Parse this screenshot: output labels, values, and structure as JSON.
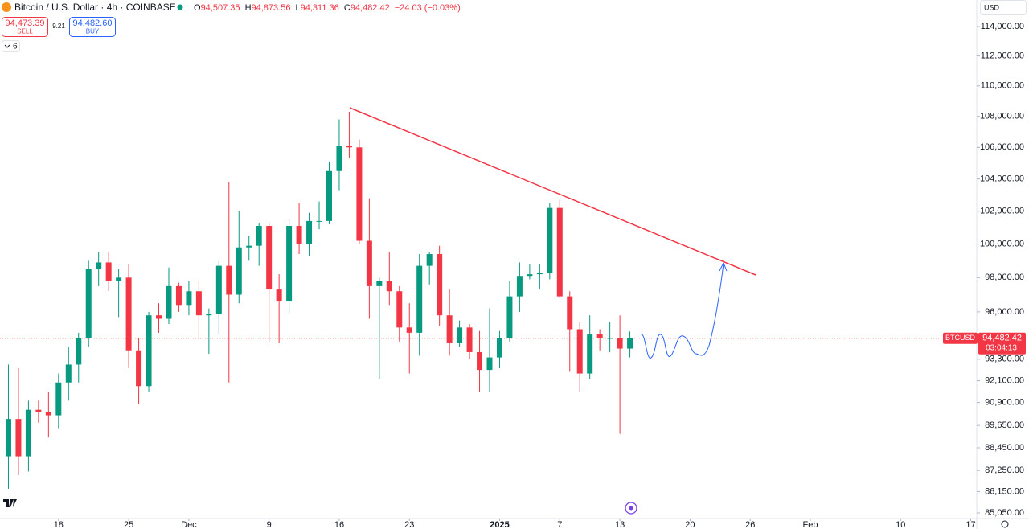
{
  "header": {
    "symbol": "Bitcoin / U.S. Dollar · 4h · COINBASE",
    "ohlc": [
      {
        "key": "O",
        "value": "94,507.35"
      },
      {
        "key": "H",
        "value": "94,873.56"
      },
      {
        "key": "L",
        "value": "94,311.36"
      },
      {
        "key": "C",
        "value": "94,482.42"
      }
    ],
    "change": "−24.03 (−0.03%)",
    "sell": {
      "price": "94,473.39",
      "label": "SELL"
    },
    "spread": "9.21",
    "buy": {
      "price": "94,482.60",
      "label": "BUY"
    },
    "indicators": "6",
    "currency": "USD"
  },
  "chart_data": {
    "type": "candlestick",
    "log_scale": true,
    "up_color": "#089981",
    "down_color": "#f23645",
    "x": [
      "2024-11-13",
      "2024-11-14",
      "2024-11-15",
      "2024-11-16",
      "2024-11-17",
      "2024-11-18",
      "2024-11-19",
      "2024-11-20",
      "2024-11-21",
      "2024-11-22",
      "2024-11-23",
      "2024-11-24",
      "2024-11-25",
      "2024-11-26",
      "2024-11-27",
      "2024-11-28",
      "2024-11-29",
      "2024-11-30",
      "2024-12-01",
      "2024-12-02",
      "2024-12-03",
      "2024-12-04",
      "2024-12-05",
      "2024-12-06",
      "2024-12-07",
      "2024-12-08",
      "2024-12-09",
      "2024-12-10",
      "2024-12-11",
      "2024-12-12",
      "2024-12-13",
      "2024-12-14",
      "2024-12-15",
      "2024-12-16",
      "2024-12-17",
      "2024-12-18",
      "2024-12-19",
      "2024-12-20",
      "2024-12-21",
      "2024-12-22",
      "2024-12-23",
      "2024-12-24",
      "2024-12-25",
      "2024-12-26",
      "2024-12-27",
      "2024-12-28",
      "2024-12-29",
      "2024-12-30",
      "2024-12-31",
      "2025-01-01",
      "2025-01-02",
      "2025-01-03",
      "2025-01-04",
      "2025-01-05",
      "2025-01-06",
      "2025-01-07",
      "2025-01-08",
      "2025-01-09",
      "2025-01-10",
      "2025-01-11",
      "2025-01-12",
      "2025-01-13",
      "2025-01-14"
    ],
    "open": [
      88000,
      90000,
      88000,
      90500,
      90400,
      90200,
      92000,
      93000,
      94500,
      98500,
      98900,
      97800,
      98000,
      93800,
      91800,
      95800,
      95600,
      97500,
      96400,
      97200,
      95800,
      95900,
      98700,
      97000,
      99800,
      99900,
      101100,
      97300,
      96600,
      101100,
      100000,
      101400,
      101400,
      104500,
      106100,
      106000,
      100200,
      97500,
      97800,
      97200,
      95100,
      94800,
      98700,
      99400,
      95800,
      94200,
      95100,
      93700,
      92700,
      93400,
      94500,
      96900,
      98100,
      98200,
      98300,
      102200,
      96900,
      95000,
      92500,
      94700,
      94500,
      94500,
      93900
    ],
    "high": [
      93000,
      92800,
      91000,
      91000,
      91500,
      92500,
      94000,
      94800,
      99000,
      99500,
      99500,
      98500,
      98800,
      94500,
      96000,
      96500,
      98600,
      97700,
      97800,
      97800,
      96200,
      99000,
      103800,
      102000,
      100500,
      101300,
      101300,
      98200,
      101500,
      102500,
      101900,
      102600,
      105100,
      107800,
      108300,
      106500,
      102800,
      98000,
      99500,
      97500,
      96500,
      99400,
      99500,
      99900,
      97300,
      95500,
      95300,
      94900,
      96200,
      94900,
      97800,
      98900,
      98800,
      98800,
      102500,
      102700,
      97200,
      95400,
      95800,
      95000,
      95400,
      95800,
      94870
    ],
    "low": [
      86300,
      87000,
      87200,
      89800,
      89000,
      89500,
      91000,
      92000,
      94000,
      97500,
      97200,
      95700,
      92800,
      90800,
      91500,
      94800,
      95300,
      96000,
      95800,
      94500,
      93600,
      94700,
      92000,
      96500,
      99000,
      98700,
      94300,
      94200,
      95900,
      99400,
      99300,
      100900,
      101200,
      103300,
      105300,
      100000,
      95600,
      92200,
      96400,
      94300,
      92500,
      93500,
      97600,
      95200,
      93500,
      94000,
      93300,
      91500,
      91500,
      92800,
      94300,
      96000,
      97900,
      97300,
      97900,
      96800,
      92600,
      91500,
      92200,
      93800,
      93700,
      89200,
      93400
    ],
    "close": [
      90000,
      88000,
      90500,
      90400,
      90200,
      92000,
      93000,
      94500,
      98500,
      98900,
      97800,
      98000,
      93800,
      91800,
      95800,
      95600,
      97500,
      96400,
      97200,
      95800,
      95900,
      98700,
      97000,
      99800,
      99900,
      101100,
      97300,
      96600,
      101100,
      100000,
      101400,
      101400,
      104500,
      106100,
      106000,
      100200,
      97500,
      97800,
      97200,
      95100,
      94800,
      98700,
      99400,
      95800,
      94200,
      95100,
      93700,
      92700,
      93400,
      94500,
      96900,
      98100,
      98200,
      98300,
      102200,
      96900,
      95000,
      92500,
      94700,
      94500,
      94500,
      93900,
      94482.42
    ],
    "xlim": [
      "2024-11-12",
      "2025-02-18"
    ],
    "xticks": [
      {
        "value": "2024-11-18",
        "label": "18"
      },
      {
        "value": "2024-11-25",
        "label": "25"
      },
      {
        "value": "2024-12-01",
        "label": "Dec"
      },
      {
        "value": "2024-12-09",
        "label": "9"
      },
      {
        "value": "2024-12-16",
        "label": "16"
      },
      {
        "value": "2024-12-23",
        "label": "23"
      },
      {
        "value": "2025-01-01",
        "label": "2025"
      },
      {
        "value": "2025-01-07",
        "label": "7"
      },
      {
        "value": "2025-01-13",
        "label": "13"
      },
      {
        "value": "2025-01-20",
        "label": "20"
      },
      {
        "value": "2025-01-26",
        "label": "26"
      },
      {
        "value": "2025-02-01",
        "label": "Feb"
      },
      {
        "value": "2025-02-10",
        "label": "10"
      },
      {
        "value": "2025-02-17",
        "label": "17"
      }
    ],
    "ylim": [
      84760,
      115840
    ],
    "yticks": [
      {
        "value": 114000,
        "label": "114,000.00"
      },
      {
        "value": 112000,
        "label": "112,000.00"
      },
      {
        "value": 110000,
        "label": "110,000.00"
      },
      {
        "value": 108000,
        "label": "108,000.00"
      },
      {
        "value": 106000,
        "label": "106,000.00"
      },
      {
        "value": 104000,
        "label": "104,000.00"
      },
      {
        "value": 102000,
        "label": "102,000.00"
      },
      {
        "value": 100000,
        "label": "100,000.00"
      },
      {
        "value": 98000,
        "label": "98,000.00"
      },
      {
        "value": 96000,
        "label": "96,000.00"
      },
      {
        "value": 93300,
        "label": "93,300.00"
      },
      {
        "value": 92100,
        "label": "92,100.00"
      },
      {
        "value": 90900,
        "label": "90,900.00"
      },
      {
        "value": 89650,
        "label": "89,650.00"
      },
      {
        "value": 88450,
        "label": "88,450.00"
      },
      {
        "value": 87250,
        "label": "87,250.00"
      },
      {
        "value": 86150,
        "label": "86,150.00"
      },
      {
        "value": 85050,
        "label": "85,050.00"
      }
    ],
    "last_price": {
      "value": 94482.42,
      "label": "94,482.42"
    },
    "symbol_tag": "BTCUSD",
    "countdown": "03:04:13"
  }
}
